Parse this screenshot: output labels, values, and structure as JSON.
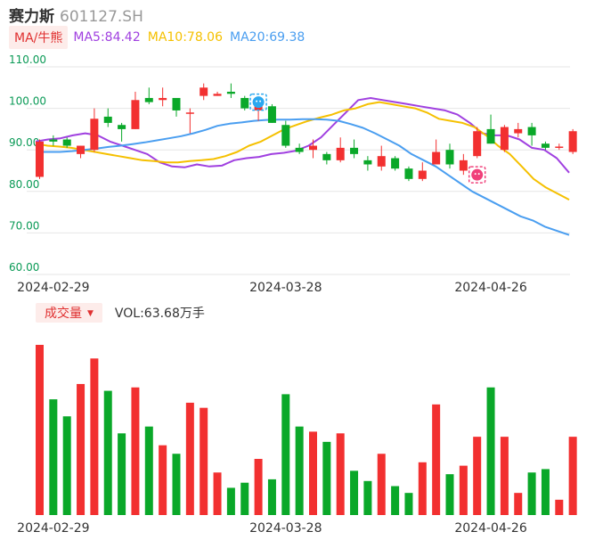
{
  "header": {
    "name": "赛力斯",
    "code": "601127.SH"
  },
  "ma_legend": {
    "toggle_label": "MA/牛熊",
    "items": [
      {
        "label": "MA5:84.42",
        "color": "#a040e0"
      },
      {
        "label": "MA10:78.06",
        "color": "#f5c000"
      },
      {
        "label": "MA20:69.38",
        "color": "#4a9ef0"
      }
    ]
  },
  "volume_header": {
    "toggle_label": "成交量",
    "arrow": "▼",
    "vol_label": "VOL:63.68万手"
  },
  "colors": {
    "up": "#f23030",
    "down": "#0aa829",
    "grid": "#e6e6e6"
  },
  "icons": {
    "bull": "bull-badge-icon",
    "bear": "bear-badge-icon"
  },
  "chart_data": [
    {
      "type": "candlestick",
      "yticks": [
        "110.00",
        "100.00",
        "90.00",
        "80.00",
        "70.00",
        "60.00"
      ],
      "ylim": [
        60,
        110
      ],
      "xtick_labels": [
        {
          "label": "2024-02-29",
          "index": 1
        },
        {
          "label": "2024-03-28",
          "index": 18
        },
        {
          "label": "2024-04-26",
          "index": 33
        }
      ],
      "candles": [
        {
          "o": 83.5,
          "h": 92.5,
          "l": 83.0,
          "c": 92.0
        },
        {
          "o": 92.5,
          "h": 93.5,
          "l": 91.0,
          "c": 92.0
        },
        {
          "o": 92.5,
          "h": 93.0,
          "l": 90.5,
          "c": 91.0
        },
        {
          "o": 89.0,
          "h": 91.0,
          "l": 88.0,
          "c": 91.0
        },
        {
          "o": 90.0,
          "h": 100.0,
          "l": 89.5,
          "c": 97.5
        },
        {
          "o": 98.0,
          "h": 100.0,
          "l": 95.5,
          "c": 96.5
        },
        {
          "o": 96.0,
          "h": 96.5,
          "l": 92.0,
          "c": 95.0
        },
        {
          "o": 95.0,
          "h": 104.0,
          "l": 95.0,
          "c": 102.0
        },
        {
          "o": 102.5,
          "h": 105.0,
          "l": 101.0,
          "c": 101.5
        },
        {
          "o": 102.0,
          "h": 105.0,
          "l": 100.5,
          "c": 102.5
        },
        {
          "o": 102.5,
          "h": 102.5,
          "l": 98.0,
          "c": 99.5
        },
        {
          "o": 99.0,
          "h": 100.0,
          "l": 94.0,
          "c": 99.0
        },
        {
          "o": 103.0,
          "h": 106.0,
          "l": 102.0,
          "c": 105.0
        },
        {
          "o": 103.0,
          "h": 104.0,
          "l": 103.0,
          "c": 103.5
        },
        {
          "o": 104.0,
          "h": 106.0,
          "l": 102.5,
          "c": 103.5
        },
        {
          "o": 102.5,
          "h": 103.0,
          "l": 99.5,
          "c": 100.0
        },
        {
          "o": 99.5,
          "h": 102.0,
          "l": 97.0,
          "c": 100.5
        },
        {
          "o": 100.5,
          "h": 101.0,
          "l": 96.5,
          "c": 96.5
        },
        {
          "o": 96.0,
          "h": 97.0,
          "l": 90.5,
          "c": 91.0
        },
        {
          "o": 90.5,
          "h": 91.5,
          "l": 89.0,
          "c": 89.5
        },
        {
          "o": 90.0,
          "h": 92.5,
          "l": 88.0,
          "c": 91.0
        },
        {
          "o": 89.0,
          "h": 89.5,
          "l": 86.5,
          "c": 87.5
        },
        {
          "o": 87.5,
          "h": 93.0,
          "l": 87.0,
          "c": 90.5
        },
        {
          "o": 90.5,
          "h": 92.5,
          "l": 88.0,
          "c": 89.0
        },
        {
          "o": 87.5,
          "h": 88.5,
          "l": 85.0,
          "c": 86.5
        },
        {
          "o": 86.0,
          "h": 91.0,
          "l": 85.0,
          "c": 88.5
        },
        {
          "o": 88.0,
          "h": 88.5,
          "l": 85.0,
          "c": 85.5
        },
        {
          "o": 85.5,
          "h": 86.0,
          "l": 82.5,
          "c": 83.0
        },
        {
          "o": 83.0,
          "h": 87.0,
          "l": 82.5,
          "c": 85.0
        },
        {
          "o": 86.5,
          "h": 92.5,
          "l": 86.5,
          "c": 89.5
        },
        {
          "o": 90.0,
          "h": 91.5,
          "l": 85.5,
          "c": 86.5
        },
        {
          "o": 85.0,
          "h": 89.0,
          "l": 84.0,
          "c": 87.5
        },
        {
          "o": 88.5,
          "h": 95.5,
          "l": 88.0,
          "c": 94.5
        },
        {
          "o": 95.0,
          "h": 98.5,
          "l": 91.5,
          "c": 91.5
        },
        {
          "o": 90.0,
          "h": 96.0,
          "l": 89.5,
          "c": 95.5
        },
        {
          "o": 94.0,
          "h": 96.5,
          "l": 93.0,
          "c": 95.0
        },
        {
          "o": 95.5,
          "h": 96.5,
          "l": 91.0,
          "c": 93.5
        },
        {
          "o": 91.5,
          "h": 92.0,
          "l": 90.0,
          "c": 90.5
        },
        {
          "o": 90.5,
          "h": 91.5,
          "l": 90.0,
          "c": 90.8
        },
        {
          "o": 89.5,
          "h": 95.0,
          "l": 89.0,
          "c": 94.5
        }
      ],
      "series": [
        {
          "name": "MA5",
          "color": "#a040e0",
          "values": [
            92.0,
            92.5,
            92.8,
            93.5,
            94.0,
            93.5,
            92.0,
            91.0,
            90.0,
            89.0,
            87.0,
            86.0,
            85.8,
            86.5,
            86.0,
            86.2,
            87.5,
            88.0,
            88.3,
            89.0,
            89.3,
            89.8,
            91.0,
            93.0,
            96.0,
            99.0,
            102.0,
            102.5,
            102.0,
            101.5,
            101.0,
            100.5,
            100.0,
            99.5,
            98.5,
            96.5,
            94.0,
            93.5,
            93.5,
            92.5,
            90.5,
            90.0,
            88.0,
            84.5
          ]
        },
        {
          "name": "MA10",
          "color": "#f5c000",
          "values": [
            91.5,
            91.0,
            90.8,
            90.5,
            90.0,
            89.5,
            89.0,
            88.5,
            88.0,
            87.5,
            87.3,
            87.0,
            87.0,
            87.3,
            87.5,
            87.8,
            88.5,
            89.5,
            91.0,
            92.0,
            93.5,
            95.0,
            96.0,
            97.0,
            97.8,
            98.5,
            99.5,
            100.0,
            101.0,
            101.5,
            101.0,
            100.5,
            100.0,
            99.0,
            97.5,
            97.0,
            96.5,
            95.5,
            93.5,
            91.0,
            89.0,
            86.0,
            83.0,
            81.0,
            79.5,
            78.0
          ]
        },
        {
          "name": "MA20",
          "color": "#4a9ef0",
          "values": [
            89.5,
            89.5,
            89.5,
            89.7,
            90.0,
            90.3,
            90.7,
            91.0,
            91.4,
            91.8,
            92.3,
            92.8,
            93.3,
            94.0,
            94.8,
            95.8,
            96.3,
            96.6,
            97.0,
            97.2,
            97.3,
            97.3,
            97.4,
            97.4,
            97.3,
            97.0,
            96.2,
            95.3,
            94.0,
            92.5,
            91.0,
            89.0,
            87.5,
            86.0,
            84.0,
            82.0,
            80.0,
            78.5,
            77.0,
            75.5,
            74.0,
            73.0,
            71.5,
            70.5,
            69.5
          ]
        }
      ],
      "markers": [
        {
          "type": "bull",
          "index": 16,
          "price": 101.5
        },
        {
          "type": "bear",
          "index": 32,
          "price": 84.0
        }
      ]
    },
    {
      "type": "bar",
      "volumes": [
        100,
        68,
        58,
        77,
        92,
        73,
        48,
        75,
        52,
        41,
        36,
        66,
        63,
        25,
        16,
        19,
        33,
        21,
        71,
        52,
        49,
        43,
        48,
        26,
        20,
        36,
        17,
        13,
        31,
        65,
        24,
        29,
        46,
        75,
        46,
        13,
        25,
        27,
        9,
        46
      ]
    }
  ]
}
